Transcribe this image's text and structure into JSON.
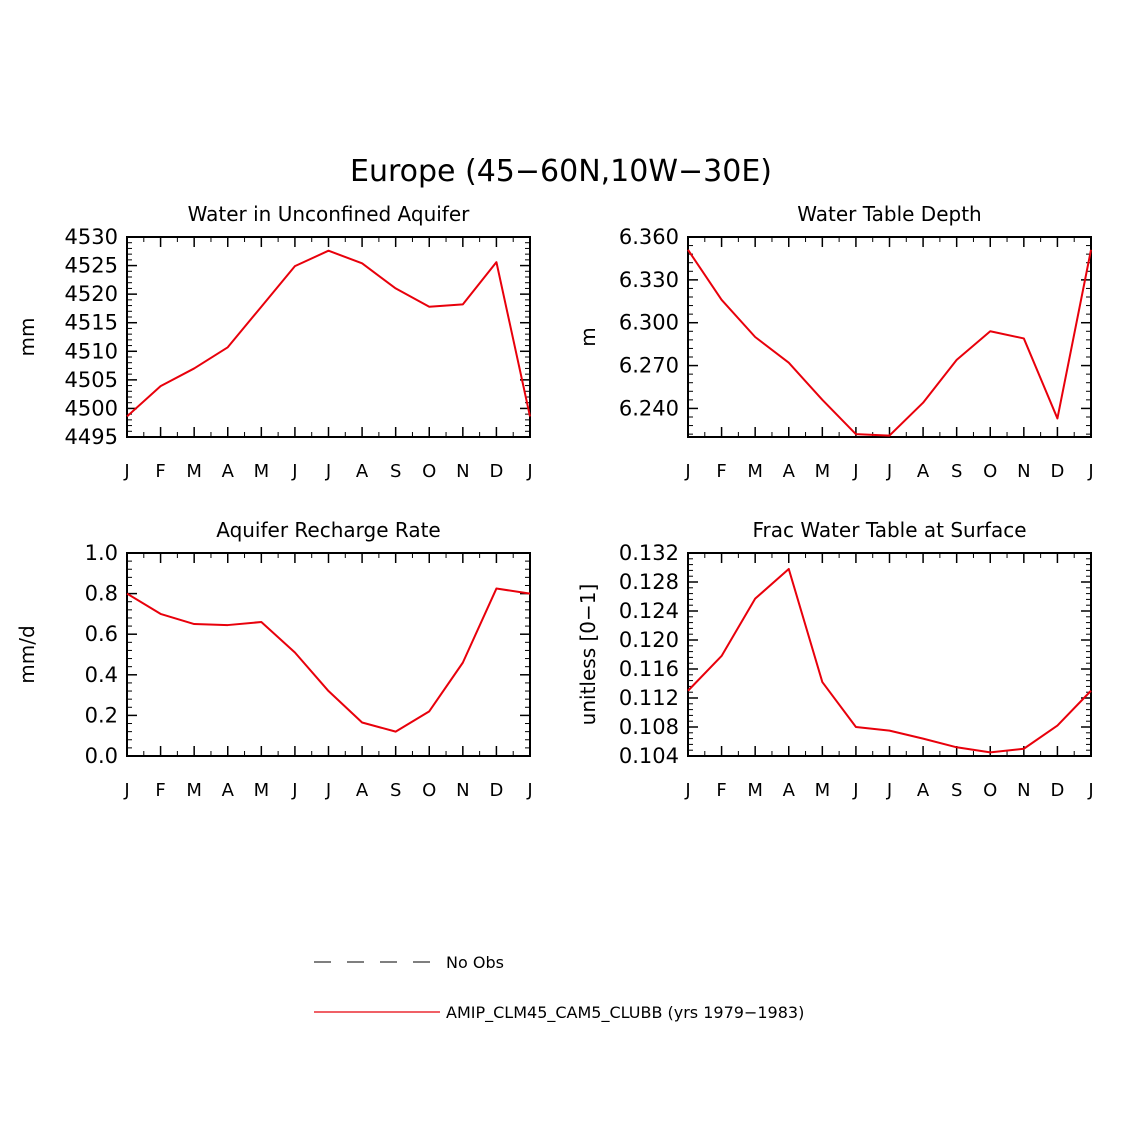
{
  "figure": {
    "title": "Europe (45−60N,10W−30E)"
  },
  "legend": {
    "items": [
      {
        "label": "No Obs",
        "style": "dashed",
        "color": "#555555"
      },
      {
        "label": "AMIP_CLM45_CAM5_CLUBB (yrs 1979−1983)",
        "style": "solid",
        "color": "#e8000b"
      }
    ]
  },
  "chart_data": [
    {
      "type": "line",
      "title": "Water in Unconfined Aquifer",
      "ylabel": "mm",
      "categories": [
        "J",
        "F",
        "M",
        "A",
        "M",
        "J",
        "J",
        "A",
        "S",
        "O",
        "N",
        "D",
        "J"
      ],
      "ylim": [
        4495,
        4530
      ],
      "yticks": [
        4495,
        4500,
        4505,
        4510,
        4515,
        4520,
        4525,
        4530
      ],
      "ytick_labels": [
        "4495",
        "4500",
        "4505",
        "4510",
        "4515",
        "4520",
        "4525",
        "4530"
      ],
      "series": [
        {
          "name": "AMIP_CLM45_CAM5_CLUBB (yrs 1979−1983)",
          "color": "#e8000b",
          "values": [
            4498.6,
            4503.9,
            4507.0,
            4510.7,
            4517.8,
            4524.9,
            4527.6,
            4525.4,
            4521.0,
            4517.8,
            4518.2,
            4525.6,
            4498.6
          ]
        }
      ]
    },
    {
      "type": "line",
      "title": "Water Table Depth",
      "ylabel": "m",
      "categories": [
        "J",
        "F",
        "M",
        "A",
        "M",
        "J",
        "J",
        "A",
        "S",
        "O",
        "N",
        "D",
        "J"
      ],
      "ylim": [
        6.22,
        6.36
      ],
      "yticks": [
        6.24,
        6.27,
        6.3,
        6.33,
        6.36
      ],
      "ytick_labels": [
        "6.240",
        "6.270",
        "6.300",
        "6.330",
        "6.360"
      ],
      "series": [
        {
          "name": "AMIP_CLM45_CAM5_CLUBB (yrs 1979−1983)",
          "color": "#e8000b",
          "values": [
            6.351,
            6.316,
            6.29,
            6.272,
            6.246,
            6.222,
            6.221,
            6.244,
            6.274,
            6.294,
            6.289,
            6.233,
            6.351
          ]
        }
      ]
    },
    {
      "type": "line",
      "title": "Aquifer Recharge Rate",
      "ylabel": "mm/d",
      "categories": [
        "J",
        "F",
        "M",
        "A",
        "M",
        "J",
        "J",
        "A",
        "S",
        "O",
        "N",
        "D",
        "J"
      ],
      "ylim": [
        0.0,
        1.0
      ],
      "yticks": [
        0.0,
        0.2,
        0.4,
        0.6,
        0.8,
        1.0
      ],
      "ytick_labels": [
        "0.0",
        "0.2",
        "0.4",
        "0.6",
        "0.8",
        "1.0"
      ],
      "series": [
        {
          "name": "AMIP_CLM45_CAM5_CLUBB (yrs 1979−1983)",
          "color": "#e8000b",
          "values": [
            0.8,
            0.7,
            0.65,
            0.645,
            0.66,
            0.51,
            0.32,
            0.165,
            0.12,
            0.22,
            0.46,
            0.825,
            0.8
          ]
        }
      ]
    },
    {
      "type": "line",
      "title": "Frac Water Table at Surface",
      "ylabel": "unitless [0−1]",
      "categories": [
        "J",
        "F",
        "M",
        "A",
        "M",
        "J",
        "J",
        "A",
        "S",
        "O",
        "N",
        "D",
        "J"
      ],
      "ylim": [
        0.104,
        0.132
      ],
      "yticks": [
        0.104,
        0.108,
        0.112,
        0.116,
        0.12,
        0.124,
        0.128,
        0.132
      ],
      "ytick_labels": [
        "0.104",
        "0.108",
        "0.112",
        "0.116",
        "0.120",
        "0.124",
        "0.128",
        "0.132"
      ],
      "series": [
        {
          "name": "AMIP_CLM45_CAM5_CLUBB (yrs 1979−1983)",
          "color": "#e8000b",
          "values": [
            0.113,
            0.1178,
            0.1257,
            0.1298,
            0.1142,
            0.108,
            0.1075,
            0.1064,
            0.1052,
            0.1045,
            0.105,
            0.1082,
            0.113
          ]
        }
      ]
    }
  ]
}
